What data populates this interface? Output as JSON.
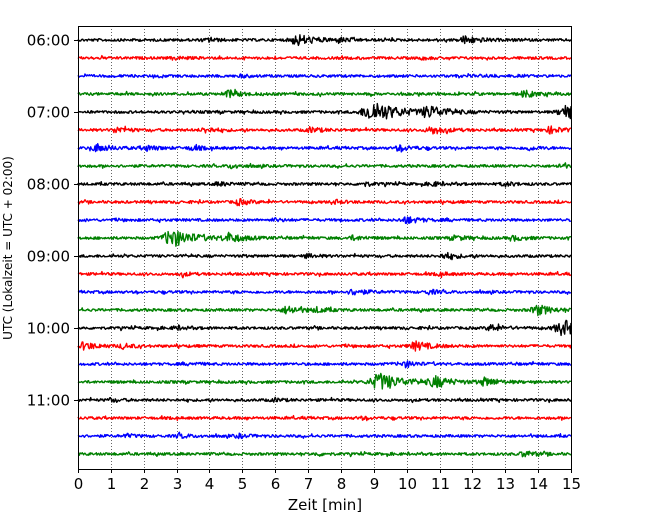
{
  "chart_data": {
    "type": "line",
    "xlabel": "Zeit  [min]",
    "ylabel": "UTC (Lokalzeit = UTC + 02:00)",
    "xlim": [
      0,
      15
    ],
    "x_ticks": [
      0,
      1,
      2,
      3,
      4,
      5,
      6,
      7,
      8,
      9,
      10,
      11,
      12,
      13,
      14,
      15
    ],
    "x_tick_labels": [
      "0",
      "1",
      "2",
      "3",
      "4",
      "5",
      "6",
      "7",
      "8",
      "9",
      "10",
      "11",
      "12",
      "13",
      "14",
      "15"
    ],
    "y_tick_labels": [
      "06:00",
      "07:00",
      "08:00",
      "09:00",
      "10:00",
      "11:00"
    ],
    "y_tick_trace_index": [
      0,
      4,
      8,
      12,
      16,
      20
    ],
    "minutes_per_trace": 15,
    "grid": "vertical-dotted",
    "trace_colors": [
      "#000000",
      "#ff0000",
      "#0000ff",
      "#008000"
    ],
    "traces": [
      {
        "start": "06:00",
        "color": "#000000",
        "events": [
          [
            6.7,
            2.6
          ],
          [
            11.8,
            1.8
          ],
          [
            4.0,
            0.7
          ],
          [
            8.0,
            0.8
          ]
        ]
      },
      {
        "start": "06:15",
        "color": "#ff0000",
        "events": [
          [
            3.0,
            0.6
          ],
          [
            10.5,
            0.5
          ]
        ]
      },
      {
        "start": "06:30",
        "color": "#0000ff",
        "events": [
          [
            5.0,
            0.5
          ],
          [
            12.5,
            0.5
          ]
        ]
      },
      {
        "start": "06:45",
        "color": "#008000",
        "events": [
          [
            4.6,
            1.6
          ],
          [
            13.6,
            1.4
          ]
        ]
      },
      {
        "start": "07:00",
        "color": "#000000",
        "events": [
          [
            9.0,
            4.8
          ],
          [
            10.7,
            2.6
          ],
          [
            14.9,
            3.2
          ]
        ]
      },
      {
        "start": "07:15",
        "color": "#ff0000",
        "events": [
          [
            1.2,
            1.3
          ],
          [
            3.9,
            1.2
          ],
          [
            7.1,
            1.2
          ],
          [
            10.8,
            1.8
          ],
          [
            14.4,
            1.5
          ]
        ]
      },
      {
        "start": "07:30",
        "color": "#0000ff",
        "events": [
          [
            0.6,
            1.7
          ],
          [
            2.1,
            1.2
          ],
          [
            3.5,
            1.0
          ],
          [
            9.8,
            1.3
          ],
          [
            13.7,
            0.9
          ]
        ]
      },
      {
        "start": "07:45",
        "color": "#008000",
        "events": [
          [
            4.7,
            0.9
          ],
          [
            14.7,
            0.9
          ]
        ]
      },
      {
        "start": "08:00",
        "color": "#000000",
        "events": [
          [
            4.3,
            0.8
          ],
          [
            8.7,
            0.9
          ],
          [
            10.8,
            0.9
          ],
          [
            13.0,
            0.9
          ]
        ]
      },
      {
        "start": "08:15",
        "color": "#ff0000",
        "events": [
          [
            4.9,
            1.3
          ],
          [
            7.8,
            0.9
          ]
        ]
      },
      {
        "start": "08:30",
        "color": "#0000ff",
        "events": [
          [
            10.0,
            1.6
          ],
          [
            6.0,
            0.6
          ]
        ]
      },
      {
        "start": "08:45",
        "color": "#008000",
        "events": [
          [
            2.9,
            4.0
          ],
          [
            4.6,
            2.0
          ],
          [
            8.4,
            1.0
          ],
          [
            11.5,
            1.1
          ],
          [
            13.3,
            1.0
          ]
        ]
      },
      {
        "start": "09:00",
        "color": "#000000",
        "events": [
          [
            11.2,
            1.4
          ],
          [
            7.0,
            0.8
          ]
        ]
      },
      {
        "start": "09:15",
        "color": "#ff0000",
        "events": [
          [
            3.2,
            0.7
          ],
          [
            11.0,
            0.7
          ]
        ]
      },
      {
        "start": "09:30",
        "color": "#0000ff",
        "events": [
          [
            8.4,
            1.4
          ],
          [
            10.7,
            0.9
          ]
        ]
      },
      {
        "start": "09:45",
        "color": "#008000",
        "events": [
          [
            6.4,
            1.9
          ],
          [
            14.0,
            2.2
          ],
          [
            7.3,
            1.0
          ]
        ]
      },
      {
        "start": "10:00",
        "color": "#000000",
        "events": [
          [
            14.8,
            3.6
          ],
          [
            12.6,
            1.4
          ],
          [
            3.0,
            0.8
          ]
        ]
      },
      {
        "start": "10:15",
        "color": "#ff0000",
        "events": [
          [
            0.2,
            1.7
          ],
          [
            1.4,
            1.0
          ],
          [
            10.3,
            2.0
          ]
        ]
      },
      {
        "start": "10:30",
        "color": "#0000ff",
        "events": [
          [
            10.0,
            1.3
          ],
          [
            3.5,
            0.5
          ]
        ]
      },
      {
        "start": "10:45",
        "color": "#008000",
        "events": [
          [
            9.2,
            4.0
          ],
          [
            10.9,
            2.4
          ],
          [
            12.4,
            1.8
          ]
        ]
      },
      {
        "start": "11:00",
        "color": "#000000",
        "events": [
          [
            1.0,
            0.7
          ],
          [
            6.0,
            0.7
          ]
        ]
      },
      {
        "start": "11:15",
        "color": "#ff0000",
        "events": [
          [
            8.6,
            0.6
          ]
        ]
      },
      {
        "start": "11:30",
        "color": "#0000ff",
        "events": [
          [
            3.1,
            0.9
          ],
          [
            4.9,
            0.8
          ],
          [
            1.5,
            0.7
          ]
        ]
      },
      {
        "start": "11:45",
        "color": "#008000",
        "events": [
          [
            13.6,
            1.3
          ],
          [
            7.3,
            0.6
          ]
        ]
      }
    ]
  }
}
